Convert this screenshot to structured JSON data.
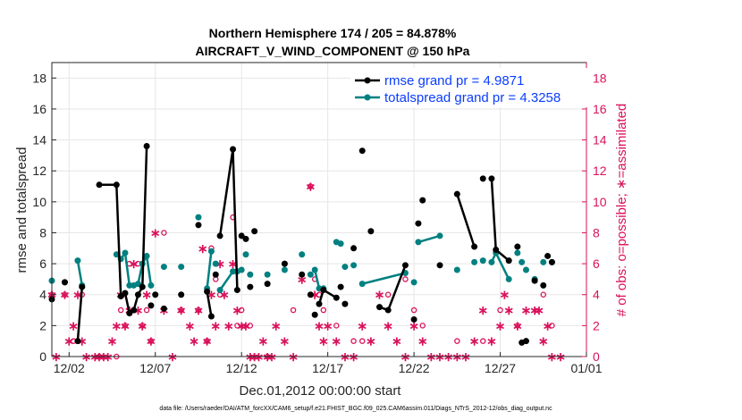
{
  "chart_data": {
    "type": "line",
    "title_line1": "Northern Hemisphere 174 / 205 = 84.878%",
    "title_line2": "AIRCRAFT_V_WIND_COMPONENT @ 150 hPa",
    "xlabel": "Dec.01,2012 00:00:00 start",
    "ylabel_left": "rmse and totalspread",
    "ylabel_right": "# of obs: o=possible; ∗=assimilated",
    "xlim": [
      0,
      31
    ],
    "ylim_left": [
      0,
      19
    ],
    "ylim_right": [
      0,
      19
    ],
    "x_tick_values": [
      1,
      6,
      11,
      16,
      21,
      26,
      31
    ],
    "x_tick_labels": [
      "12/02",
      "12/07",
      "12/12",
      "12/17",
      "12/22",
      "12/27",
      "01/01"
    ],
    "y_tick_values": [
      0,
      2,
      4,
      6,
      8,
      10,
      12,
      14,
      16,
      18
    ],
    "y_tick_labels": [
      "0",
      "2",
      "4",
      "6",
      "8",
      "10",
      "12",
      "14",
      "16",
      "18"
    ],
    "colors": {
      "rmse": "#000000",
      "spread": "#008080",
      "obs": "#d9115b",
      "grid": "#e6e6e6"
    },
    "series": [
      {
        "name": "rmse",
        "legend": "rmse grand pr = 4.9871",
        "x": [
          0,
          0.75,
          1.5,
          1.75,
          2.75,
          3.75,
          4.0,
          4.25,
          4.5,
          4.75,
          5.0,
          5.25,
          5.5,
          5.75,
          6.0,
          6.5,
          7.5,
          8.5,
          9.0,
          9.25,
          9.5,
          9.75,
          10.5,
          10.75,
          11.0,
          11.25,
          11.5,
          11.75,
          12.5,
          13.5,
          14.5,
          15.0,
          15.25,
          15.5,
          15.75,
          16.5,
          16.75,
          17.0,
          17.5,
          18.0,
          18.5,
          19.0,
          19.5,
          20.5,
          21.0,
          21.25,
          21.5,
          22.5,
          23.5,
          24.5,
          25.0,
          25.5,
          25.75,
          26.5,
          27.0,
          27.25,
          27.5,
          28.0,
          28.5,
          28.75,
          29.0
        ],
        "y": [
          3.7,
          4.8,
          1.0,
          4.5,
          11.1,
          11.1,
          3.9,
          4.1,
          2.8,
          3.0,
          4.0,
          4.5,
          13.6,
          3.3,
          4.0,
          3.1,
          4.0,
          8.5,
          4.2,
          2.6,
          5.3,
          7.8,
          13.4,
          4.3,
          7.8,
          7.6,
          4.5,
          8.1,
          4.7,
          6.0,
          5.3,
          4.0,
          2.7,
          3.4,
          4.3,
          3.8,
          4.5,
          3.4,
          7.0,
          13.3,
          8.1,
          3.2,
          3.0,
          5.9,
          2.4,
          8.6,
          10.1,
          5.9,
          10.5,
          7.1,
          11.5,
          11.5,
          6.9,
          6.2,
          7.1,
          0.9,
          1.0,
          4.9,
          4.6,
          6.5,
          6.1
        ],
        "segments": [
          [
            2,
            3
          ],
          [
            4,
            5,
            6,
            7,
            8,
            9,
            10,
            11,
            12
          ],
          [
            18,
            19
          ],
          [
            21,
            22,
            23
          ],
          [
            33,
            34,
            35
          ],
          [
            41,
            42,
            43
          ],
          [
            48,
            49
          ],
          [
            51,
            52,
            53
          ]
        ]
      },
      {
        "name": "totalspread",
        "legend": "totalspread grand pr = 4.3258",
        "x": [
          0,
          0.75,
          1.5,
          1.75,
          3.75,
          4.0,
          4.25,
          4.5,
          4.75,
          5.0,
          5.25,
          5.5,
          5.75,
          6.5,
          7.5,
          8.5,
          9.0,
          9.25,
          9.5,
          9.75,
          10.5,
          10.75,
          11.0,
          11.25,
          11.5,
          12.5,
          13.5,
          14.5,
          15.0,
          15.25,
          15.5,
          15.75,
          16.5,
          16.75,
          17.0,
          17.5,
          18.0,
          20.5,
          21.0,
          21.25,
          22.5,
          23.5,
          24.5,
          25.0,
          25.5,
          25.75,
          26.5,
          27.0,
          27.25,
          27.5,
          28.0,
          28.5,
          29.0
        ],
        "y": [
          4.9,
          4.8,
          6.2,
          4.6,
          6.6,
          6.3,
          6.7,
          4.6,
          4.6,
          4.7,
          6.0,
          6.5,
          4.6,
          5.8,
          5.8,
          9.0,
          4.4,
          6.8,
          6.0,
          4.3,
          5.5,
          5.5,
          5.6,
          6.6,
          5.3,
          5.3,
          5.6,
          6.6,
          5.3,
          5.6,
          4.4,
          4.4,
          7.4,
          7.3,
          5.8,
          5.9,
          4.7,
          5.4,
          4.8,
          7.4,
          7.8,
          5.6,
          6.1,
          6.2,
          6.1,
          6.7,
          5.0,
          6.7,
          6.1,
          5.6,
          5.0,
          6.1,
          6.1
        ],
        "segments": [
          [
            2,
            3
          ],
          [
            4,
            5,
            6,
            7,
            8,
            9,
            10,
            11,
            12
          ],
          [
            16,
            17
          ],
          [
            19,
            20,
            21
          ],
          [
            29,
            30,
            31
          ],
          [
            36,
            37
          ],
          [
            39,
            40
          ],
          [
            44,
            45,
            46
          ]
        ]
      },
      {
        "name": "obs_possible",
        "marker": "o",
        "x": [
          0,
          0.75,
          1.25,
          1.75,
          2.75,
          3.75,
          4.0,
          4.25,
          4.5,
          4.75,
          5.0,
          5.25,
          5.5,
          5.75,
          6.5,
          7.5,
          8.5,
          9.0,
          9.25,
          9.5,
          9.75,
          10.5,
          10.75,
          11.0,
          11.5,
          12.5,
          14.0,
          15.0,
          15.25,
          15.5,
          15.75,
          16.5,
          17.5,
          18.0,
          19.5,
          20.5,
          21.0,
          21.5,
          23.5,
          25.0,
          26.0,
          27.0,
          28.0,
          28.5,
          29.0
        ],
        "y": [
          4,
          4,
          1,
          4,
          0,
          0,
          3,
          2,
          6,
          3,
          6,
          2,
          3,
          1,
          8,
          3,
          3,
          1,
          7,
          5,
          4,
          9,
          2,
          3,
          2,
          0,
          3,
          11,
          5,
          4,
          3,
          2,
          1,
          1,
          4,
          5,
          3,
          2,
          1,
          1,
          3,
          2,
          5,
          4,
          2
        ]
      },
      {
        "name": "obs_assimilated",
        "marker": "*",
        "x": [
          0,
          0.25,
          0.75,
          1.0,
          1.25,
          1.5,
          1.75,
          2.0,
          2.5,
          2.75,
          3.0,
          3.25,
          3.5,
          3.75,
          4.0,
          4.25,
          4.5,
          4.75,
          5.0,
          5.25,
          5.5,
          5.75,
          6.0,
          6.5,
          7.0,
          7.5,
          8.0,
          8.25,
          8.5,
          8.75,
          9.0,
          9.25,
          9.5,
          9.75,
          10.0,
          10.25,
          10.5,
          10.75,
          11.0,
          11.25,
          11.5,
          11.75,
          12.0,
          12.25,
          12.5,
          12.75,
          13.0,
          13.5,
          14.0,
          14.5,
          15.0,
          15.25,
          15.5,
          15.75,
          16.0,
          16.5,
          17.0,
          17.5,
          18.0,
          18.5,
          19.0,
          19.5,
          20.0,
          20.5,
          21.0,
          21.5,
          22.0,
          22.5,
          23.0,
          23.5,
          24.0,
          24.5,
          25.0,
          25.5,
          26.0,
          26.25,
          26.5,
          27.0,
          27.5,
          28.0,
          28.25,
          28.5,
          28.75,
          29.0,
          29.5
        ],
        "y": [
          4,
          0,
          4,
          1,
          2,
          4,
          1,
          0,
          0,
          0,
          0,
          0,
          1,
          2,
          4,
          2,
          3,
          6,
          3,
          2,
          4,
          1,
          8,
          3,
          0,
          3,
          2,
          1,
          3,
          7,
          1,
          4,
          2,
          6,
          4,
          2,
          6,
          3,
          2,
          2,
          0,
          0,
          0,
          1,
          0,
          0,
          2,
          1,
          0,
          5,
          11,
          4,
          2,
          1,
          2,
          1,
          0,
          0,
          2,
          1,
          4,
          2,
          1,
          0,
          2,
          1,
          0,
          0,
          0,
          0,
          0,
          1,
          3,
          1,
          2,
          4,
          3,
          2,
          3,
          3,
          3,
          1,
          2,
          0,
          0
        ]
      }
    ],
    "footer": "data file: /Users/raeder/DAI/ATM_forcXX/CAM6_setup/f.e21.FHIST_BGC.f09_025.CAM6assim.011/Diags_NTrS_2012-12/obs_diag_output.nc"
  }
}
